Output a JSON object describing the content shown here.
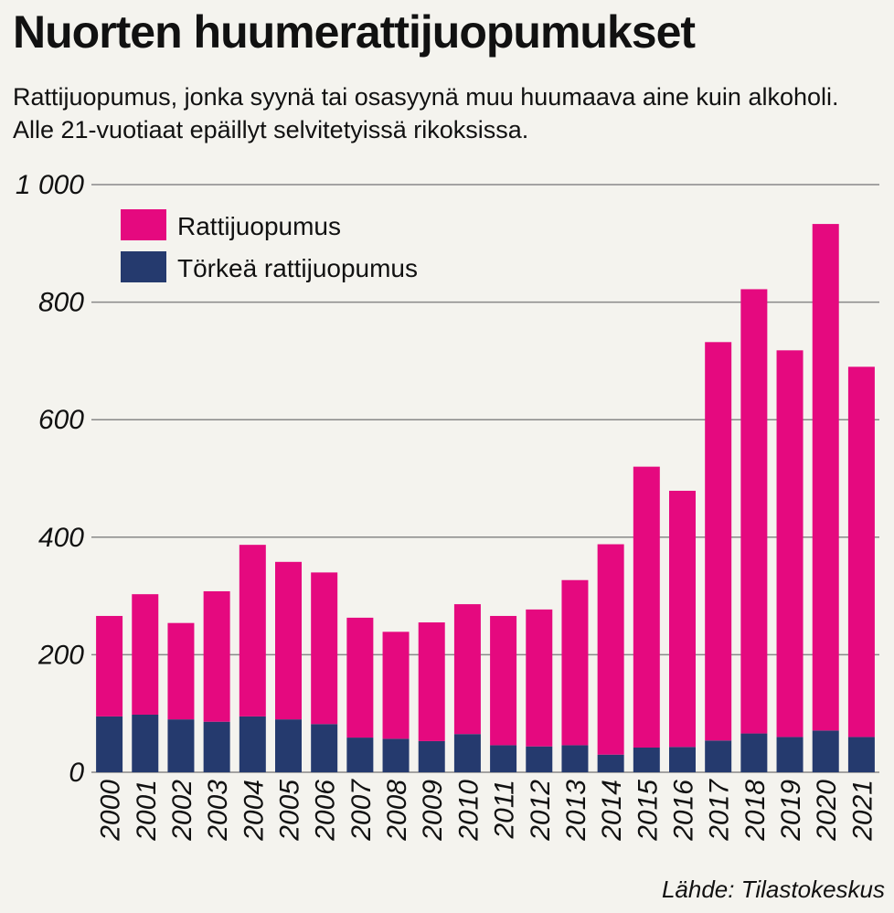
{
  "title": "Nuorten huumerattijuopumukset",
  "subtitle": "Rattijuopumus, jonka syynä tai osasyynä muu huumaava aine kuin alkoholi. Alle 21-vuotiaat epäillyt selvitetyissä rikoksissa.",
  "source": "Lähde: Tilastokeskus",
  "colors": {
    "rattijuopumus": "#e5097f",
    "torkea": "#253a6e",
    "grid": "#888888"
  },
  "chart_data": {
    "type": "bar",
    "stacked": true,
    "categories": [
      "2000",
      "2001",
      "2002",
      "2003",
      "2004",
      "2005",
      "2006",
      "2007",
      "2008",
      "2009",
      "2010",
      "2011",
      "2012",
      "2013",
      "2014",
      "2015",
      "2016",
      "2017",
      "2018",
      "2019",
      "2020",
      "2021"
    ],
    "series": [
      {
        "name": "Törkeä rattijuopumus",
        "values": [
          95,
          98,
          90,
          86,
          95,
          90,
          82,
          59,
          57,
          53,
          65,
          46,
          44,
          46,
          30,
          42,
          43,
          54,
          66,
          60,
          71,
          60
        ]
      },
      {
        "name": "Rattijuopumus",
        "values": [
          171,
          205,
          164,
          222,
          292,
          268,
          258,
          204,
          182,
          202,
          221,
          220,
          233,
          281,
          358,
          478,
          436,
          678,
          756,
          658,
          862,
          630
        ]
      }
    ],
    "totals": [
      266,
      303,
      254,
      308,
      387,
      358,
      340,
      263,
      239,
      255,
      286,
      266,
      277,
      327,
      388,
      520,
      479,
      732,
      822,
      718,
      933,
      690
    ],
    "ylim": [
      0,
      1000
    ],
    "yticks": [
      "0",
      "200",
      "400",
      "600",
      "800",
      "1 000"
    ],
    "ytick_values": [
      0,
      200,
      400,
      600,
      800,
      1000
    ],
    "legend": [
      "Rattijuopumus",
      "Törkeä rattijuopumus"
    ],
    "legend_position": "top-left",
    "grid": true
  }
}
